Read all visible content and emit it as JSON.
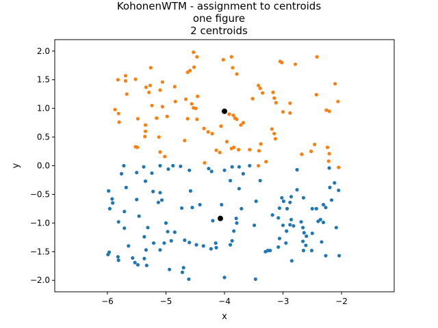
{
  "chart_data": {
    "type": "scatter",
    "title_lines": [
      "KohonenWTM - assignment to centroids",
      "one figure",
      "2 centroids"
    ],
    "xlabel": "x",
    "ylabel": "y",
    "xlim": [
      -6.9,
      -1.1
    ],
    "ylim": [
      -2.2,
      2.2
    ],
    "xticks": [
      -6,
      -5,
      -4,
      -3,
      -2
    ],
    "yticks": [
      -2.0,
      -1.5,
      -1.0,
      -0.5,
      0.0,
      0.5,
      1.0,
      1.5,
      2.0
    ],
    "xtick_labels": [
      "−6",
      "−5",
      "−4",
      "−3",
      "−2"
    ],
    "ytick_labels": [
      "−2.0",
      "−1.5",
      "−1.0",
      "−0.5",
      "0.0",
      "0.5",
      "1.0",
      "1.5",
      "2.0"
    ],
    "grid": false,
    "series": [
      {
        "color": "#ff7f0e",
        "points": [
          [
            -4.53,
            1.98
          ],
          [
            -4.47,
            1.9
          ],
          [
            -4.02,
            1.85
          ],
          [
            -3.88,
            1.9
          ],
          [
            -2.42,
            1.9
          ],
          [
            -3.05,
            1.82
          ],
          [
            -3.02,
            1.8
          ],
          [
            -2.79,
            1.77
          ],
          [
            -5.82,
            1.5
          ],
          [
            -5.69,
            1.57
          ],
          [
            -5.52,
            1.51
          ],
          [
            -5.26,
            1.71
          ],
          [
            -4.52,
            1.72
          ],
          [
            -4.63,
            1.63
          ],
          [
            -4.59,
            1.66
          ],
          [
            -3.86,
            1.71
          ],
          [
            -3.79,
            1.6
          ],
          [
            -5.69,
            1.48
          ],
          [
            -5.06,
            1.46
          ],
          [
            -5.34,
            1.37
          ],
          [
            -5.27,
            1.4
          ],
          [
            -5.29,
            1.28
          ],
          [
            -5.1,
            1.32
          ],
          [
            -4.85,
            1.38
          ],
          [
            -4.46,
            1.21
          ],
          [
            -3.42,
            1.4
          ],
          [
            -3.39,
            1.35
          ],
          [
            -3.17,
            1.28
          ],
          [
            -3.15,
            1.18
          ],
          [
            -2.11,
            1.43
          ],
          [
            -2.43,
            1.24
          ],
          [
            -5.67,
            1.25
          ],
          [
            -4.84,
            1.12
          ],
          [
            -4.66,
            1.16
          ],
          [
            -4.56,
            1.08
          ],
          [
            -4.53,
            1.01
          ],
          [
            -4.49,
            1.0
          ],
          [
            -5.24,
            1.05
          ],
          [
            -5.06,
            1.03
          ],
          [
            -5.87,
            0.98
          ],
          [
            -5.81,
            0.91
          ],
          [
            -5.8,
            0.76
          ],
          [
            -3.52,
            1.17
          ],
          [
            -3.35,
            1.27
          ],
          [
            -3.12,
            1.1
          ],
          [
            -2.88,
            1.09
          ],
          [
            -2.88,
            0.92
          ],
          [
            -3.0,
            0.94
          ],
          [
            -2.26,
            0.97
          ],
          [
            -2.21,
            0.95
          ],
          [
            -2.06,
            1.12
          ],
          [
            -4.98,
            0.86
          ],
          [
            -4.63,
            0.82
          ],
          [
            -4.47,
            0.81
          ],
          [
            -3.92,
            0.9
          ],
          [
            -3.82,
            0.83
          ],
          [
            -3.79,
            0.81
          ],
          [
            -3.68,
            0.75
          ],
          [
            -3.72,
            0.71
          ],
          [
            -3.85,
            0.88
          ],
          [
            -5.48,
            0.82
          ],
          [
            -5.35,
            0.71
          ],
          [
            -5.35,
            0.6
          ],
          [
            -5.16,
            0.83
          ],
          [
            -4.35,
            0.65
          ],
          [
            -4.28,
            0.59
          ],
          [
            -4.21,
            0.56
          ],
          [
            -4.06,
            0.69
          ],
          [
            -3.96,
            0.42
          ],
          [
            -3.88,
            0.3
          ],
          [
            -3.84,
            0.32
          ],
          [
            -3.76,
            0.28
          ],
          [
            -3.57,
            0.28
          ],
          [
            -3.38,
            0.38
          ],
          [
            -3.19,
            0.64
          ],
          [
            -3.15,
            0.56
          ],
          [
            -3.13,
            0.47
          ],
          [
            -5.52,
            0.33
          ],
          [
            -5.49,
            0.32
          ],
          [
            -5.36,
            0.51
          ],
          [
            -5.12,
            0.5
          ],
          [
            -5.1,
            0.24
          ],
          [
            -5.02,
            0.16
          ],
          [
            -4.68,
            0.44
          ],
          [
            -4.14,
            0.27
          ],
          [
            -4.08,
            0.23
          ],
          [
            -4.34,
            0.05
          ],
          [
            -3.41,
            0.26
          ],
          [
            -3.29,
            0.07
          ],
          [
            -3.42,
            0.0
          ],
          [
            -2.68,
            0.2
          ],
          [
            -2.52,
            0.25
          ],
          [
            -2.46,
            0.37
          ],
          [
            -2.24,
            0.32
          ],
          [
            -2.21,
            0.21
          ],
          [
            -2.22,
            0.08
          ],
          [
            -2.05,
            -0.03
          ]
        ]
      },
      {
        "color": "#1f77b4",
        "points": [
          [
            -5.72,
            0.0
          ],
          [
            -5.5,
            -0.12
          ],
          [
            -5.38,
            -0.02
          ],
          [
            -5.24,
            -0.13
          ],
          [
            -5.1,
            0.0
          ],
          [
            -4.96,
            -0.06
          ],
          [
            -4.88,
            0.0
          ],
          [
            -4.75,
            -0.01
          ],
          [
            -4.6,
            -0.08
          ],
          [
            -4.27,
            -0.05
          ],
          [
            -4.22,
            -0.1
          ],
          [
            -4.0,
            -0.08
          ],
          [
            -3.87,
            -0.02
          ],
          [
            -3.75,
            -0.02
          ],
          [
            -3.57,
            0.0
          ],
          [
            -3.68,
            -0.14
          ],
          [
            -3.9,
            -0.26
          ],
          [
            -2.76,
            -0.07
          ],
          [
            -2.21,
            -0.04
          ],
          [
            -2.2,
            -0.38
          ],
          [
            -5.98,
            -0.44
          ],
          [
            -5.76,
            -0.14
          ],
          [
            -5.68,
            -0.38
          ],
          [
            -5.92,
            -0.58
          ],
          [
            -5.91,
            -0.65
          ],
          [
            -5.96,
            -0.75
          ],
          [
            -5.5,
            -0.59
          ],
          [
            -5.35,
            -0.27
          ],
          [
            -5.22,
            -0.45
          ],
          [
            -5.1,
            -0.47
          ],
          [
            -5.13,
            -0.64
          ],
          [
            -5.07,
            -0.6
          ],
          [
            -4.58,
            -0.44
          ],
          [
            -4.73,
            -0.74
          ],
          [
            -4.55,
            -0.73
          ],
          [
            -4.42,
            -0.68
          ],
          [
            -4.05,
            -0.68
          ],
          [
            -4.2,
            -0.96
          ],
          [
            -3.75,
            -0.4
          ],
          [
            -3.71,
            -0.75
          ],
          [
            -3.46,
            -0.62
          ],
          [
            -3.39,
            -0.26
          ],
          [
            -3.02,
            -0.56
          ],
          [
            -2.99,
            -0.62
          ],
          [
            -3.06,
            -0.74
          ],
          [
            -2.86,
            -0.54
          ],
          [
            -2.88,
            -0.64
          ],
          [
            -2.93,
            -0.75
          ],
          [
            -2.76,
            -0.42
          ],
          [
            -2.65,
            -0.56
          ],
          [
            -2.5,
            -0.75
          ],
          [
            -2.43,
            -0.75
          ],
          [
            -2.31,
            -0.68
          ],
          [
            -2.27,
            -0.73
          ],
          [
            -2.17,
            -0.6
          ],
          [
            -2.12,
            -0.3
          ],
          [
            -2.05,
            -0.43
          ],
          [
            -5.71,
            -0.8
          ],
          [
            -5.81,
            -0.98
          ],
          [
            -5.71,
            -1.09
          ],
          [
            -5.64,
            -1.4
          ],
          [
            -5.46,
            -0.88
          ],
          [
            -5.31,
            -1.08
          ],
          [
            -5.0,
            -1.0
          ],
          [
            -4.97,
            -1.15
          ],
          [
            -4.85,
            -1.16
          ],
          [
            -4.91,
            -1.31
          ],
          [
            -5.03,
            -1.35
          ],
          [
            -5.21,
            -1.35
          ],
          [
            -5.37,
            -1.24
          ],
          [
            -5.34,
            -1.47
          ],
          [
            -5.1,
            -1.47
          ],
          [
            -4.68,
            -1.3
          ],
          [
            -4.6,
            -1.34
          ],
          [
            -4.48,
            -1.38
          ],
          [
            -4.36,
            -1.4
          ],
          [
            -4.15,
            -1.35
          ],
          [
            -4.23,
            -1.45
          ],
          [
            -3.87,
            -1.31
          ],
          [
            -3.8,
            -0.92
          ],
          [
            -3.79,
            -1.0
          ],
          [
            -3.84,
            -1.14
          ],
          [
            -3.9,
            -1.38
          ],
          [
            -3.49,
            -1.04
          ],
          [
            -3.22,
            -1.48
          ],
          [
            -3.26,
            -1.48
          ],
          [
            -3.18,
            -0.86
          ],
          [
            -3.08,
            -0.91
          ],
          [
            -3.0,
            -1.04
          ],
          [
            -3.06,
            -1.27
          ],
          [
            -2.95,
            -1.35
          ],
          [
            -2.86,
            -0.94
          ],
          [
            -2.88,
            -1.03
          ],
          [
            -2.94,
            -1.14
          ],
          [
            -2.82,
            -1.05
          ],
          [
            -2.69,
            -0.98
          ],
          [
            -2.66,
            -1.08
          ],
          [
            -2.64,
            -1.17
          ],
          [
            -2.6,
            -1.23
          ],
          [
            -2.5,
            -1.18
          ],
          [
            -2.4,
            -0.97
          ],
          [
            -2.36,
            -0.94
          ],
          [
            -2.31,
            -0.99
          ],
          [
            -2.09,
            -1.08
          ],
          [
            -2.34,
            -1.33
          ],
          [
            -2.65,
            -1.48
          ],
          [
            -2.66,
            -1.32
          ],
          [
            -2.51,
            -1.48
          ],
          [
            -2.85,
            -1.66
          ],
          [
            -2.27,
            -1.57
          ],
          [
            -2.04,
            -1.57
          ],
          [
            -5.99,
            -1.55
          ],
          [
            -5.97,
            -1.51
          ],
          [
            -5.82,
            -1.59
          ],
          [
            -5.81,
            -1.65
          ],
          [
            -5.57,
            -1.61
          ],
          [
            -5.53,
            -1.69
          ],
          [
            -5.48,
            -1.73
          ],
          [
            -5.37,
            -1.62
          ],
          [
            -5.33,
            -1.74
          ],
          [
            -4.94,
            -1.81
          ],
          [
            -4.7,
            -1.78
          ],
          [
            -4.72,
            -1.86
          ],
          [
            -4.61,
            -1.98
          ],
          [
            -4.0,
            -1.95
          ],
          [
            -3.47,
            -1.98
          ],
          [
            -3.3,
            -1.5
          ],
          [
            -3.08,
            -1.42
          ],
          [
            -2.61,
            -1.39
          ],
          [
            -4.14,
            -1.43
          ]
        ]
      },
      {
        "color": "#000000",
        "points": [
          [
            -4.0,
            0.95
          ],
          [
            -4.07,
            -0.92
          ]
        ]
      }
    ]
  }
}
